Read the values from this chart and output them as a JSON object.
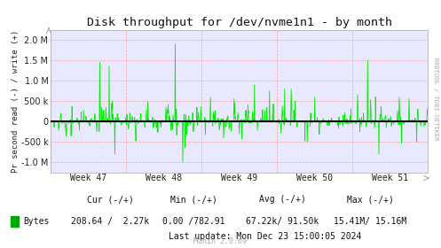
{
  "title": "Disk throughput for /dev/nvme1n1 - by month",
  "ylabel": "Pr second read (-) / write (+)",
  "xlabel_ticks": [
    "Week 47",
    "Week 48",
    "Week 49",
    "Week 50",
    "Week 51"
  ],
  "ylim": [
    -1250000.0,
    2250000.0
  ],
  "yticks": [
    -1000000.0,
    -500000.0,
    0.0,
    500000.0,
    1000000.0,
    1500000.0,
    2000000.0
  ],
  "line_color": "#00EE00",
  "zero_line_color": "#000000",
  "bg_color": "#FFFFFF",
  "plot_bg_color": "#E8E8FF",
  "grid_color": "#FF9999",
  "right_label": "RRDTOOL / TOBI OETIKER",
  "legend_label": "Bytes",
  "legend_color": "#00AA00",
  "num_points": 2000,
  "seed": 42
}
